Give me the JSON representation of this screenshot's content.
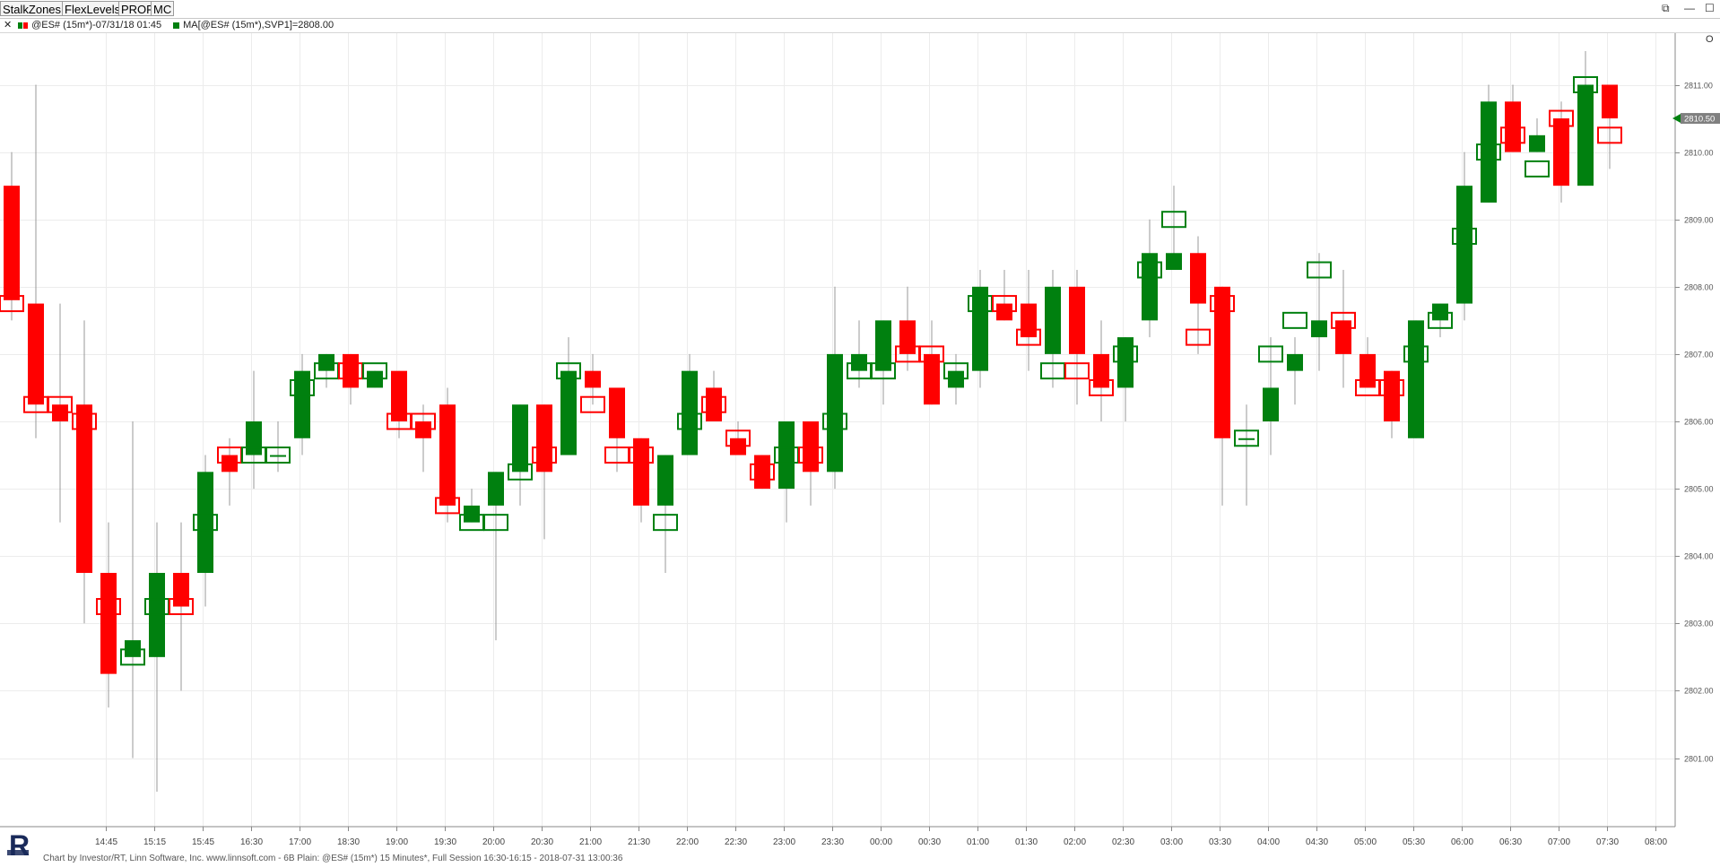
{
  "toolbar": {
    "buttons": [
      "StalkZones",
      "FlexLevels",
      "PROF",
      "MC"
    ],
    "window_controls": [
      "⧉",
      "—",
      "☐"
    ]
  },
  "legend": {
    "close_glyph": "✕",
    "series_label": "@ES# (15m*)-07/31/18 01:45",
    "ma_label": "MA[@ES# (15m*),SVP1]=2808.00"
  },
  "footer": {
    "text": "Chart by Investor/RT, Linn Software, Inc. www.linnsoft.com - 6B Plain: @ES# (15m*) 15 Minutes*, Full Session 16:30-16:15 - 2018-07-31 13:00:36"
  },
  "chart_data": {
    "type": "candlestick",
    "symbol": "@ES#",
    "interval": "15m",
    "ylim": [
      2800,
      2812
    ],
    "y_ticks": [
      "2801.00",
      "2802.00",
      "2803.00",
      "2804.00",
      "2805.00",
      "2806.00",
      "2807.00",
      "2808.00",
      "2809.00",
      "2810.00",
      "2811.00"
    ],
    "last_price_label": "2810.50",
    "x_ticks": [
      {
        "i": 2,
        "label": "14:45"
      },
      {
        "i": 4,
        "label": "15:15"
      },
      {
        "i": 6,
        "label": "15:45"
      },
      {
        "i": 8,
        "label": "16:30"
      },
      {
        "i": 10,
        "label": "17:00"
      },
      {
        "i": 12,
        "label": "18:30"
      },
      {
        "i": 14,
        "label": "19:00"
      },
      {
        "i": 16,
        "label": "19:30"
      },
      {
        "i": 18,
        "label": "20:00"
      },
      {
        "i": 20,
        "label": "20:30"
      },
      {
        "i": 22,
        "label": "21:00"
      },
      {
        "i": 24,
        "label": "21:30"
      },
      {
        "i": 26,
        "label": "22:00"
      },
      {
        "i": 28,
        "label": "22:30"
      },
      {
        "i": 30,
        "label": "23:00"
      },
      {
        "i": 32,
        "label": "23:30"
      },
      {
        "i": 34,
        "label": "00:00"
      },
      {
        "i": 36,
        "label": "00:30"
      },
      {
        "i": 38,
        "label": "01:00"
      },
      {
        "i": 40,
        "label": "01:30"
      },
      {
        "i": 42,
        "label": "02:00"
      },
      {
        "i": 44,
        "label": "02:30"
      },
      {
        "i": 46,
        "label": "03:00"
      },
      {
        "i": 48,
        "label": "03:30"
      },
      {
        "i": 50,
        "label": "04:00"
      },
      {
        "i": 52,
        "label": "04:30"
      },
      {
        "i": 54,
        "label": "05:00"
      },
      {
        "i": 56,
        "label": "05:30"
      },
      {
        "i": 58,
        "label": "06:00"
      },
      {
        "i": 60,
        "label": "06:30"
      },
      {
        "i": 62,
        "label": "07:00"
      },
      {
        "i": 64,
        "label": "07:30"
      },
      {
        "i": 66,
        "label": "08:00"
      }
    ],
    "candles": [
      {
        "o": 2809.5,
        "h": 2810.0,
        "l": 2807.5,
        "c": 2807.8,
        "m": 2807.75
      },
      {
        "o": 2807.75,
        "h": 2811.0,
        "l": 2805.75,
        "c": 2806.25,
        "m": 2806.25
      },
      {
        "o": 2806.25,
        "h": 2807.75,
        "l": 2804.5,
        "c": 2806.0,
        "m": 2806.25
      },
      {
        "o": 2806.25,
        "h": 2807.5,
        "l": 2803.0,
        "c": 2803.75,
        "m": 2806.0
      },
      {
        "o": 2803.75,
        "h": 2804.5,
        "l": 2801.75,
        "c": 2802.25,
        "m": 2803.25
      },
      {
        "o": 2802.5,
        "h": 2806.0,
        "l": 2801.0,
        "c": 2802.75,
        "m": 2802.5
      },
      {
        "o": 2802.5,
        "h": 2804.5,
        "l": 2800.5,
        "c": 2803.75,
        "m": 2803.25
      },
      {
        "o": 2803.75,
        "h": 2804.5,
        "l": 2802.0,
        "c": 2803.25,
        "m": 2803.25
      },
      {
        "o": 2803.75,
        "h": 2805.5,
        "l": 2803.25,
        "c": 2805.25,
        "m": 2804.5
      },
      {
        "o": 2805.5,
        "h": 2805.75,
        "l": 2804.75,
        "c": 2805.25,
        "m": 2805.5
      },
      {
        "o": 2805.5,
        "h": 2806.75,
        "l": 2805.0,
        "c": 2806.0,
        "m": 2805.5
      },
      {
        "o": 2805.5,
        "h": 2806.0,
        "l": 2805.25,
        "c": 2805.5,
        "m": 2805.5
      },
      {
        "o": 2805.75,
        "h": 2807.0,
        "l": 2805.5,
        "c": 2806.75,
        "m": 2806.5
      },
      {
        "o": 2806.75,
        "h": 2807.0,
        "l": 2806.5,
        "c": 2807.0,
        "m": 2806.75
      },
      {
        "o": 2807.0,
        "h": 2807.0,
        "l": 2806.25,
        "c": 2806.5,
        "m": 2806.75
      },
      {
        "o": 2806.5,
        "h": 2806.75,
        "l": 2806.5,
        "c": 2806.75,
        "m": 2806.75
      },
      {
        "o": 2806.75,
        "h": 2806.75,
        "l": 2805.75,
        "c": 2806.0,
        "m": 2806.0
      },
      {
        "o": 2806.0,
        "h": 2806.25,
        "l": 2805.25,
        "c": 2805.75,
        "m": 2806.0
      },
      {
        "o": 2806.25,
        "h": 2806.5,
        "l": 2804.5,
        "c": 2804.75,
        "m": 2804.75
      },
      {
        "o": 2804.5,
        "h": 2805.0,
        "l": 2804.5,
        "c": 2804.75,
        "m": 2804.5
      },
      {
        "o": 2804.75,
        "h": 2805.25,
        "l": 2802.75,
        "c": 2805.25,
        "m": 2804.5
      },
      {
        "o": 2805.25,
        "h": 2806.25,
        "l": 2804.75,
        "c": 2806.25,
        "m": 2805.25
      },
      {
        "o": 2806.25,
        "h": 2806.25,
        "l": 2804.25,
        "c": 2805.25,
        "m": 2805.5
      },
      {
        "o": 2805.5,
        "h": 2807.25,
        "l": 2805.5,
        "c": 2806.75,
        "m": 2806.75
      },
      {
        "o": 2806.75,
        "h": 2807.0,
        "l": 2806.25,
        "c": 2806.5,
        "m": 2806.25
      },
      {
        "o": 2806.5,
        "h": 2806.5,
        "l": 2805.25,
        "c": 2805.75,
        "m": 2805.5
      },
      {
        "o": 2805.75,
        "h": 2805.75,
        "l": 2804.5,
        "c": 2804.75,
        "m": 2805.5
      },
      {
        "o": 2804.75,
        "h": 2805.5,
        "l": 2803.75,
        "c": 2805.5,
        "m": 2804.5
      },
      {
        "o": 2805.5,
        "h": 2807.0,
        "l": 2805.5,
        "c": 2806.75,
        "m": 2806.0
      },
      {
        "o": 2806.5,
        "h": 2806.75,
        "l": 2806.0,
        "c": 2806.0,
        "m": 2806.25
      },
      {
        "o": 2805.75,
        "h": 2806.0,
        "l": 2805.5,
        "c": 2805.5,
        "m": 2805.75
      },
      {
        "o": 2805.5,
        "h": 2805.5,
        "l": 2805.0,
        "c": 2805.0,
        "m": 2805.25
      },
      {
        "o": 2805.0,
        "h": 2806.0,
        "l": 2804.5,
        "c": 2806.0,
        "m": 2805.5
      },
      {
        "o": 2806.0,
        "h": 2806.0,
        "l": 2804.75,
        "c": 2805.25,
        "m": 2805.5
      },
      {
        "o": 2805.25,
        "h": 2808.0,
        "l": 2805.0,
        "c": 2807.0,
        "m": 2806.0
      },
      {
        "o": 2806.75,
        "h": 2807.5,
        "l": 2806.5,
        "c": 2807.0,
        "m": 2806.75
      },
      {
        "o": 2806.75,
        "h": 2807.5,
        "l": 2806.25,
        "c": 2807.5,
        "m": 2806.75
      },
      {
        "o": 2807.5,
        "h": 2808.0,
        "l": 2806.75,
        "c": 2807.0,
        "m": 2807.0
      },
      {
        "o": 2807.0,
        "h": 2807.5,
        "l": 2806.25,
        "c": 2806.25,
        "m": 2807.0
      },
      {
        "o": 2806.5,
        "h": 2807.0,
        "l": 2806.25,
        "c": 2806.75,
        "m": 2806.75
      },
      {
        "o": 2806.75,
        "h": 2808.25,
        "l": 2806.5,
        "c": 2808.0,
        "m": 2807.75
      },
      {
        "o": 2807.75,
        "h": 2808.25,
        "l": 2807.5,
        "c": 2807.5,
        "m": 2807.75
      },
      {
        "o": 2807.75,
        "h": 2808.25,
        "l": 2806.75,
        "c": 2807.25,
        "m": 2807.25
      },
      {
        "o": 2807.0,
        "h": 2808.25,
        "l": 2806.5,
        "c": 2808.0,
        "m": 2806.75
      },
      {
        "o": 2808.0,
        "h": 2808.25,
        "l": 2806.25,
        "c": 2807.0,
        "m": 2806.75
      },
      {
        "o": 2807.0,
        "h": 2807.5,
        "l": 2806.0,
        "c": 2806.5,
        "m": 2806.5
      },
      {
        "o": 2806.5,
        "h": 2807.25,
        "l": 2806.0,
        "c": 2807.25,
        "m": 2807.0
      },
      {
        "o": 2807.5,
        "h": 2809.0,
        "l": 2807.25,
        "c": 2808.5,
        "m": 2808.25
      },
      {
        "o": 2808.25,
        "h": 2809.5,
        "l": 2808.25,
        "c": 2808.5,
        "m": 2809.0
      },
      {
        "o": 2808.5,
        "h": 2808.75,
        "l": 2807.0,
        "c": 2807.75,
        "m": 2807.25
      },
      {
        "o": 2808.0,
        "h": 2808.0,
        "l": 2804.75,
        "c": 2805.75,
        "m": 2807.75
      },
      {
        "o": 2805.75,
        "h": 2806.25,
        "l": 2804.75,
        "c": 2805.75,
        "m": 2805.75
      },
      {
        "o": 2806.0,
        "h": 2807.25,
        "l": 2805.5,
        "c": 2806.5,
        "m": 2807.0
      },
      {
        "o": 2806.75,
        "h": 2807.25,
        "l": 2806.25,
        "c": 2807.0,
        "m": 2807.5
      },
      {
        "o": 2807.25,
        "h": 2808.5,
        "l": 2806.75,
        "c": 2807.5,
        "m": 2808.25
      },
      {
        "o": 2807.5,
        "h": 2808.25,
        "l": 2806.5,
        "c": 2807.0,
        "m": 2807.5
      },
      {
        "o": 2807.0,
        "h": 2807.25,
        "l": 2806.5,
        "c": 2806.5,
        "m": 2806.5
      },
      {
        "o": 2806.75,
        "h": 2806.75,
        "l": 2805.75,
        "c": 2806.0,
        "m": 2806.5
      },
      {
        "o": 2805.75,
        "h": 2807.5,
        "l": 2805.75,
        "c": 2807.5,
        "m": 2807.0
      },
      {
        "o": 2807.5,
        "h": 2807.75,
        "l": 2807.25,
        "c": 2807.75,
        "m": 2807.5
      },
      {
        "o": 2807.75,
        "h": 2810.0,
        "l": 2807.5,
        "c": 2809.5,
        "m": 2808.75
      },
      {
        "o": 2809.25,
        "h": 2811.0,
        "l": 2809.25,
        "c": 2810.75,
        "m": 2810.0
      },
      {
        "o": 2810.75,
        "h": 2811.0,
        "l": 2810.0,
        "c": 2810.0,
        "m": 2810.25
      },
      {
        "o": 2810.0,
        "h": 2810.5,
        "l": 2810.0,
        "c": 2810.25,
        "m": 2809.75
      },
      {
        "o": 2810.5,
        "h": 2810.75,
        "l": 2809.25,
        "c": 2809.5,
        "m": 2810.5
      },
      {
        "o": 2809.5,
        "h": 2811.5,
        "l": 2809.5,
        "c": 2811.0,
        "m": 2811.0
      },
      {
        "o": 2811.0,
        "h": 2811.0,
        "l": 2809.75,
        "c": 2810.5,
        "m": 2810.25
      }
    ]
  },
  "colors": {
    "up": "#00800f",
    "down": "#ff0000",
    "grid": "#ececec",
    "axis": "#888888"
  }
}
